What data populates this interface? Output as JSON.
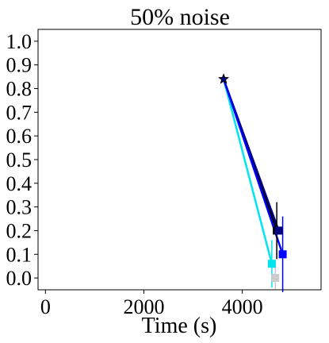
{
  "chart_data": {
    "type": "line",
    "title": "50% noise",
    "xlabel": "Time (s)",
    "ylabel": "",
    "xlim": [
      -150,
      5600
    ],
    "ylim": [
      -0.05,
      1.05
    ],
    "xticks": [
      0,
      2000,
      4000
    ],
    "yticks": [
      0.0,
      0.1,
      0.2,
      0.3,
      0.4,
      0.5,
      0.6,
      0.7,
      0.8,
      0.9,
      1.0
    ],
    "xtick_labels": [
      "0",
      "2000",
      "4000"
    ],
    "ytick_labels": [
      "0.0",
      "0.1",
      "0.2",
      "0.3",
      "0.4",
      "0.5",
      "0.6",
      "0.7",
      "0.8",
      "0.9",
      "1.0"
    ],
    "grid": false,
    "start_point": {
      "x": 3620,
      "y": 0.84,
      "marker": "star",
      "color": "#000080"
    },
    "series": [
      {
        "color": "#00e5ee",
        "x": [
          3620,
          4600
        ],
        "y": [
          0.84,
          0.06
        ],
        "error": [
          0.0,
          0.1
        ]
      },
      {
        "color": "#000000",
        "x": [
          3620,
          4700
        ],
        "y": [
          0.84,
          0.2
        ],
        "error": [
          0.0,
          0.12
        ]
      },
      {
        "color": "#000080",
        "x": [
          3620,
          4740
        ],
        "y": [
          0.84,
          0.2
        ],
        "error": [
          0.0,
          0.0
        ]
      },
      {
        "color": "#0000ff",
        "x": [
          3620,
          4820
        ],
        "y": [
          0.84,
          0.1
        ],
        "error": [
          0.0,
          0.16
        ]
      }
    ],
    "extra_points": [
      {
        "color": "#cccccc",
        "x": 4670,
        "y": 0.0,
        "error": 0.05
      }
    ]
  }
}
